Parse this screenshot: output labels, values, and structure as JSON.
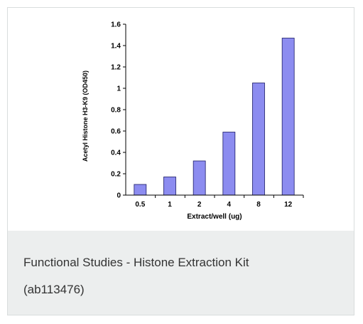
{
  "caption": {
    "title": "Functional Studies - Histone Extraction Kit",
    "code": "(ab113476)"
  },
  "colors": {
    "bar_fill": "#8c8cf0",
    "bar_stroke": "#1a1a66",
    "caption_bg": "#eceeee",
    "caption_text": "#333333"
  },
  "chart_data": {
    "type": "bar",
    "categories": [
      "0.5",
      "1",
      "2",
      "4",
      "8",
      "12"
    ],
    "values": [
      0.1,
      0.17,
      0.32,
      0.59,
      1.05,
      1.47
    ],
    "xlabel": "Extract/well (ug)",
    "ylabel": "Acetyl Histone H3-K9 (OD450)",
    "ylim": [
      0,
      1.6
    ],
    "yticks": [
      "0",
      "0.2",
      "0.4",
      "0.6",
      "0.8",
      "1",
      "1.2",
      "1.4",
      "1.6"
    ],
    "ytick_values": [
      0,
      0.2,
      0.4,
      0.6,
      0.8,
      1,
      1.2,
      1.4,
      1.6
    ],
    "grid": false,
    "legend": "none"
  }
}
